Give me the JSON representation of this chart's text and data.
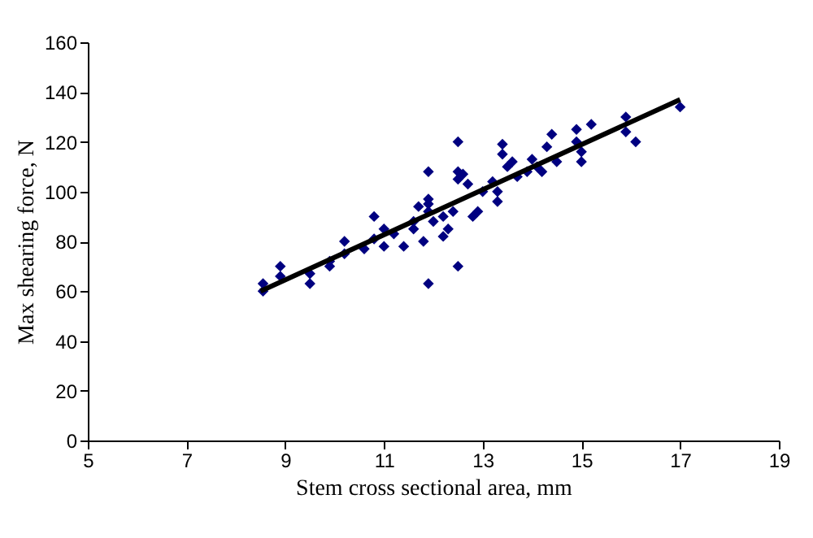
{
  "chart_data": {
    "type": "scatter",
    "xlabel": "Stem cross sectional area, mm",
    "ylabel": "Max shearing force, N",
    "xlim": [
      5,
      19
    ],
    "xticks": [
      5,
      7,
      9,
      11,
      13,
      15,
      17,
      19
    ],
    "ylim": [
      0,
      160
    ],
    "yticks": [
      0,
      20,
      40,
      60,
      80,
      100,
      120,
      140,
      160
    ],
    "grid": false,
    "marker": "diamond",
    "series": [
      {
        "color": "#000080",
        "x": [
          8.55,
          8.55,
          8.9,
          8.9,
          9.5,
          9.5,
          9.9,
          9.9,
          10.2,
          10.2,
          10.6,
          10.8,
          10.8,
          11.0,
          11.0,
          11.2,
          11.4,
          11.6,
          11.6,
          11.7,
          11.8,
          11.9,
          11.9,
          11.9,
          11.9,
          11.9,
          12.0,
          12.2,
          12.2,
          12.3,
          12.4,
          12.5,
          12.5,
          12.5,
          12.5,
          12.6,
          12.7,
          12.8,
          12.9,
          13.0,
          13.2,
          13.3,
          13.3,
          13.4,
          13.4,
          13.5,
          13.6,
          13.7,
          13.9,
          14.0,
          14.1,
          14.2,
          14.3,
          14.4,
          14.5,
          14.9,
          14.9,
          15.0,
          15.0,
          15.2,
          15.9,
          15.9,
          16.1,
          17.0
        ],
        "values": [
          63,
          60,
          70,
          66,
          67,
          63,
          72,
          70,
          80,
          75,
          77,
          90,
          81,
          85,
          78,
          83,
          78,
          88,
          85,
          94,
          80,
          108,
          97,
          95,
          92,
          63,
          88,
          90,
          82,
          85,
          92,
          120,
          108,
          105,
          70,
          107,
          103,
          90,
          92,
          100,
          104,
          96,
          100,
          119,
          115,
          110,
          112,
          106,
          108,
          113,
          110,
          108,
          118,
          123,
          112,
          120,
          125,
          116,
          112,
          127,
          130,
          124,
          120,
          134
        ]
      },
      {
        "type": "line",
        "color": "#000000",
        "line_style": "solid",
        "marker": "none",
        "x": [
          8.5,
          17
        ],
        "values": [
          60,
          137
        ]
      }
    ]
  }
}
